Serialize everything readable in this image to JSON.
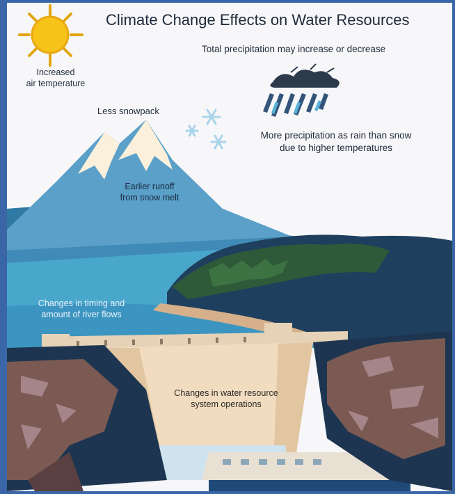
{
  "title": "Climate Change Effects on Water Resources",
  "labels": {
    "precipitation": "Total precipitation may increase or decrease",
    "air_temperature": [
      "Increased",
      "air temperature"
    ],
    "snowpack": "Less snowpack",
    "rain_vs_snow": [
      "More precipitation as rain than snow",
      "due to higher temperatures"
    ],
    "runoff": [
      "Earlier runoff",
      "from snow melt"
    ],
    "river_flows": [
      "Changes in timing and",
      "amount of river flows"
    ],
    "operations": [
      "Changes in water resource",
      "system operations"
    ]
  },
  "icons": [
    "sun-icon",
    "rain-cloud-icon",
    "snowflake-icon"
  ],
  "colors": {
    "frame": "#3a66a8",
    "sky": "#f7f7f9",
    "sun": "#f6c418",
    "mountain": "#5aa0c8",
    "lake": "#4aa7cc",
    "forest": "#2f5a3a",
    "dam": "#f1dcc0",
    "rock": "#7a5a52"
  }
}
